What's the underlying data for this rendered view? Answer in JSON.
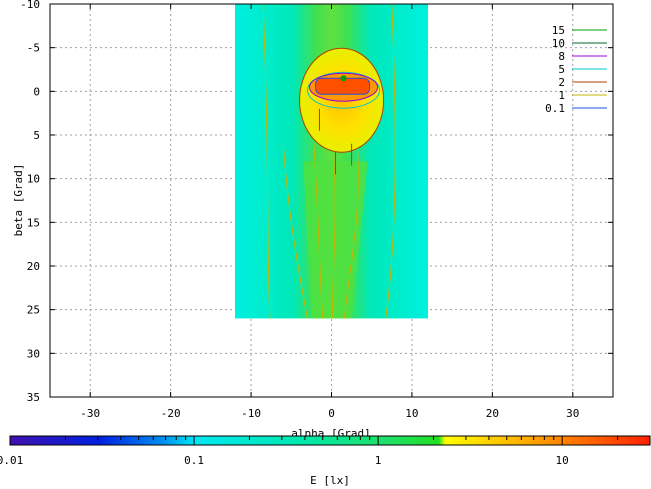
{
  "chart_data": {
    "type": "heatmap",
    "title": "",
    "xlabel": "alpha [Grad]",
    "ylabel": "beta [Grad]",
    "xlim": [
      -35,
      35
    ],
    "ylim": [
      -10,
      35
    ],
    "y_inverted": true,
    "x_ticks": [
      "-30",
      "-20",
      "-10",
      "0",
      "10",
      "20",
      "30"
    ],
    "y_ticks": [
      "-10",
      "-5",
      "0",
      "5",
      "10",
      "15",
      "20",
      "25",
      "30",
      "35"
    ],
    "grid": true,
    "data_extent": {
      "alpha": [
        -12,
        12
      ],
      "beta": [
        -10,
        26
      ]
    },
    "peak": {
      "alpha": 1.5,
      "beta": -1.5
    },
    "contour_levels": [
      {
        "value": "15",
        "color": "#00a000"
      },
      {
        "value": "10",
        "color": "#006a2a"
      },
      {
        "value": "8",
        "color": "#a000c8"
      },
      {
        "value": "5",
        "color": "#00c8c8"
      },
      {
        "value": "2",
        "color": "#b04000"
      },
      {
        "value": "1",
        "color": "#c8b400"
      },
      {
        "value": "0.1",
        "color": "#2050e0"
      }
    ],
    "legend_position": "top-right",
    "colorbar": {
      "label": "E [lx]",
      "scale": "log",
      "range": [
        0.01,
        30
      ],
      "tick_labels": [
        "0.01",
        "0.1",
        "1",
        "10"
      ]
    }
  }
}
